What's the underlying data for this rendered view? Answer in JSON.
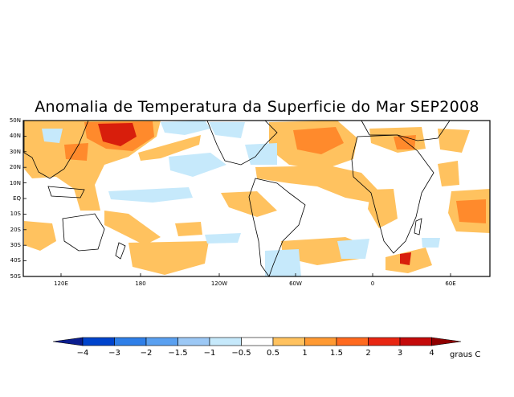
{
  "title": "Anomalia de Temperatura da Superficie do Mar SEP2008",
  "lat_labels": [
    "50N",
    "40N",
    "30N",
    "20N",
    "10N",
    "EQ",
    "10S",
    "20S",
    "30S",
    "40S",
    "50S"
  ],
  "lon_labels": [
    "120E",
    "180",
    "120W",
    "60W",
    "0",
    "60E"
  ],
  "legend": {
    "levels": [
      "−4",
      "−3",
      "−2",
      "−1.5",
      "−1",
      "−0.5",
      "0.5",
      "1",
      "1.5",
      "2",
      "3",
      "4"
    ],
    "colors": [
      "#0b1d8f",
      "#0044cc",
      "#2f7fe8",
      "#5aa0f0",
      "#9cc8f5",
      "#c6e9fb",
      "#ffffff",
      "#ffc25f",
      "#ff9a33",
      "#ff6a1f",
      "#e82612",
      "#c40a0a",
      "#8f0000"
    ],
    "unit": "graus C"
  },
  "colors": {
    "land_outline": "#000000",
    "frame": "#000000"
  }
}
